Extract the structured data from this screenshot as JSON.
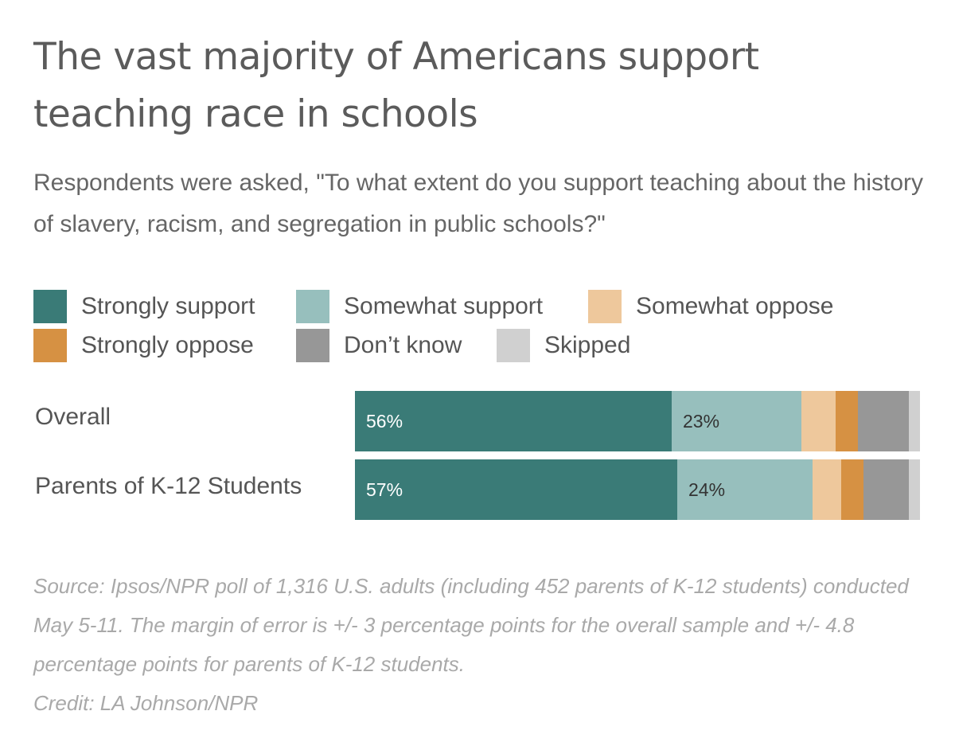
{
  "chart_data": {
    "type": "bar",
    "orientation": "horizontal",
    "stacked": true,
    "title": "The vast majority of Americans support teaching race in schools",
    "subtitle": "Respondents were asked, \"To what extent do you support teaching about the history of slavery, racism, and segregation in public schools?\"",
    "categories": [
      "Overall",
      "Parents of K-12 Students"
    ],
    "series": [
      {
        "name": "Strongly support",
        "color": "#3a7b77",
        "label_color": "#ffffff",
        "values": [
          56,
          57
        ],
        "labels": [
          "56%",
          "57%"
        ]
      },
      {
        "name": "Somewhat support",
        "color": "#97bfbd",
        "label_color": "#333333",
        "values": [
          23,
          24
        ],
        "labels": [
          "23%",
          "24%"
        ]
      },
      {
        "name": "Somewhat oppose",
        "color": "#eec89c",
        "label_color": "#333333",
        "values": [
          6,
          5
        ],
        "labels": [
          "",
          ""
        ]
      },
      {
        "name": "Strongly oppose",
        "color": "#d69143",
        "label_color": "#333333",
        "values": [
          4,
          4
        ],
        "labels": [
          "",
          ""
        ]
      },
      {
        "name": "Don’t know",
        "color": "#979797",
        "label_color": "#333333",
        "values": [
          9,
          8
        ],
        "labels": [
          "",
          ""
        ]
      },
      {
        "name": "Skipped",
        "color": "#d0d0d0",
        "label_color": "#333333",
        "values": [
          2,
          2
        ],
        "labels": [
          "",
          ""
        ]
      }
    ],
    "xlim": [
      0,
      100
    ],
    "legend_position": "top",
    "source": "Source: Ipsos/NPR poll of 1,316 U.S. adults (including 452 parents of K-12 students) conducted May 5-11. The margin of error is +/- 3 percentage points for the overall sample and +/- 4.8 percentage points for parents of K-12 students.",
    "credit": "Credit: LA Johnson/NPR"
  }
}
